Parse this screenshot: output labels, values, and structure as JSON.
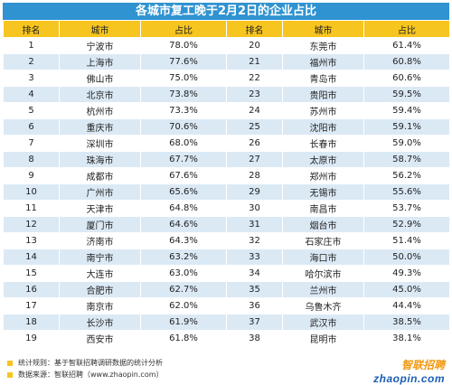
{
  "title": "各城市复工晚于2月2日的企业占比",
  "columns": [
    "排名",
    "城市",
    "占比",
    "排名",
    "城市",
    "占比"
  ],
  "rows": [
    [
      "1",
      "宁波市",
      "78.0%",
      "20",
      "东莞市",
      "61.4%"
    ],
    [
      "2",
      "上海市",
      "77.6%",
      "21",
      "福州市",
      "60.8%"
    ],
    [
      "3",
      "佛山市",
      "75.0%",
      "22",
      "青岛市",
      "60.6%"
    ],
    [
      "4",
      "北京市",
      "73.8%",
      "23",
      "贵阳市",
      "59.5%"
    ],
    [
      "5",
      "杭州市",
      "73.3%",
      "24",
      "苏州市",
      "59.4%"
    ],
    [
      "6",
      "重庆市",
      "70.6%",
      "25",
      "沈阳市",
      "59.1%"
    ],
    [
      "7",
      "深圳市",
      "68.0%",
      "26",
      "长春市",
      "59.0%"
    ],
    [
      "8",
      "珠海市",
      "67.7%",
      "27",
      "太原市",
      "58.7%"
    ],
    [
      "9",
      "成都市",
      "67.6%",
      "28",
      "郑州市",
      "56.2%"
    ],
    [
      "10",
      "广州市",
      "65.6%",
      "29",
      "无锡市",
      "55.6%"
    ],
    [
      "11",
      "天津市",
      "64.8%",
      "30",
      "南昌市",
      "53.7%"
    ],
    [
      "12",
      "厦门市",
      "64.6%",
      "31",
      "烟台市",
      "52.9%"
    ],
    [
      "13",
      "济南市",
      "64.3%",
      "32",
      "石家庄市",
      "51.4%"
    ],
    [
      "14",
      "南宁市",
      "63.2%",
      "33",
      "海口市",
      "50.0%"
    ],
    [
      "15",
      "大连市",
      "63.0%",
      "34",
      "哈尔滨市",
      "49.3%"
    ],
    [
      "16",
      "合肥市",
      "62.7%",
      "35",
      "兰州市",
      "45.0%"
    ],
    [
      "17",
      "南京市",
      "62.0%",
      "36",
      "乌鲁木齐",
      "44.4%"
    ],
    [
      "18",
      "长沙市",
      "61.9%",
      "37",
      "武汉市",
      "38.5%"
    ],
    [
      "19",
      "西安市",
      "61.8%",
      "38",
      "昆明市",
      "38.1%"
    ]
  ],
  "notes": [
    "统计规则：基于智联招聘调研数据的统计分析",
    "数据来源：智联招聘（www.zhaopin.com）"
  ],
  "logo": {
    "cn": "智联招聘",
    "en": "zhaopin.com"
  },
  "colors": {
    "banner": "#2f93d1",
    "header": "#f7c51f",
    "stripe": "#dbe9f5"
  }
}
